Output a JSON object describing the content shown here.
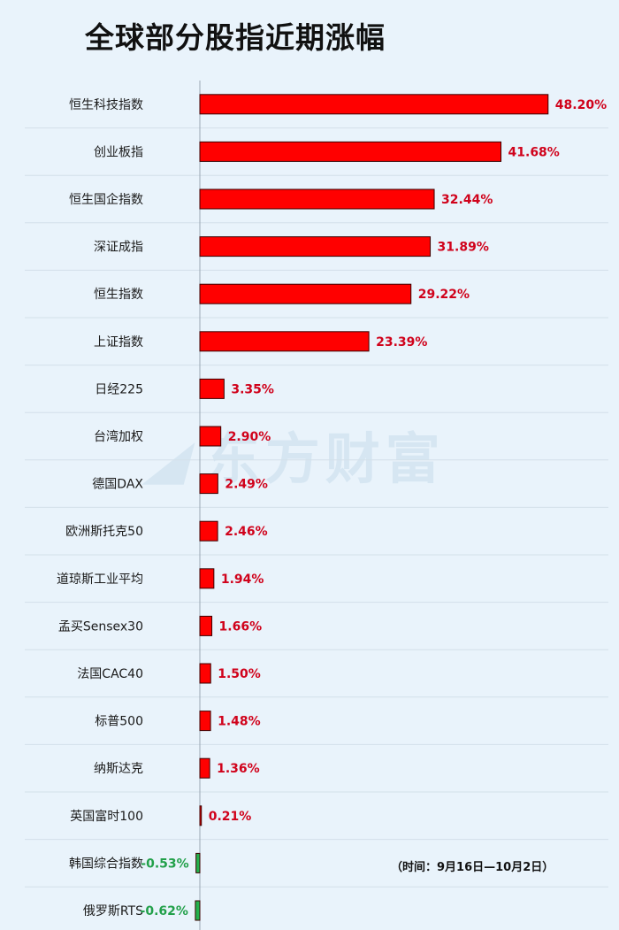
{
  "watermark_text": "东方财富",
  "note": "（时间：9月16日—10月2日）",
  "colors": {
    "positive": "#ff0000",
    "negative": "#22b14c",
    "positive_label": "#d0021b",
    "negative_label": "#22a04a"
  },
  "chart_data": {
    "type": "bar",
    "orientation": "horizontal",
    "title": "全球部分股指近期涨幅",
    "categories": [
      "恒生科技指数",
      "创业板指",
      "恒生国企指数",
      "深证成指",
      "恒生指数",
      "上证指数",
      "日经225",
      "台湾加权",
      "德国DAX",
      "欧洲斯托克50",
      "道琼斯工业平均",
      "孟买Sensex30",
      "法国CAC40",
      "标普500",
      "纳斯达克",
      "英国富时100",
      "韩国综合指数",
      "俄罗斯RTS"
    ],
    "values": [
      48.2,
      41.68,
      32.44,
      31.89,
      29.22,
      23.39,
      3.35,
      2.9,
      2.49,
      2.46,
      1.94,
      1.66,
      1.5,
      1.48,
      1.36,
      0.21,
      -0.53,
      -0.62
    ],
    "labels": [
      "48.20%",
      "41.68%",
      "32.44%",
      "31.89%",
      "29.22%",
      "23.39%",
      "3.35%",
      "2.90%",
      "2.49%",
      "2.46%",
      "1.94%",
      "1.66%",
      "1.50%",
      "1.48%",
      "1.36%",
      "0.21%",
      "-0.53%",
      "-0.62%"
    ],
    "xlim": [
      -0.62,
      48.2
    ],
    "grid": true
  }
}
